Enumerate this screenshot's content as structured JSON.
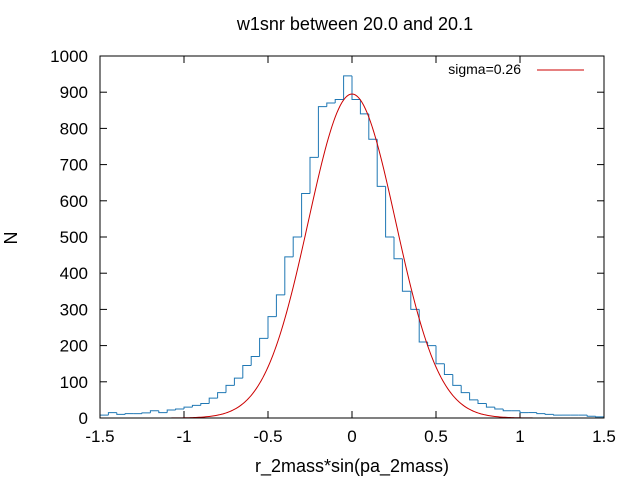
{
  "chart_data": {
    "type": "bar",
    "title": "w1snr between 20.0 and 20.1",
    "xlabel": "r_2mass*sin(pa_2mass)",
    "ylabel": "N",
    "xlim": [
      -1.5,
      1.5
    ],
    "ylim": [
      0,
      1000
    ],
    "xticks": [
      -1.5,
      -1,
      -0.5,
      0,
      0.5,
      1,
      1.5
    ],
    "xtick_labels": [
      "-1.5",
      "-1",
      "-0.5",
      "0",
      "0.5",
      "1",
      "1.5"
    ],
    "yticks": [
      0,
      100,
      200,
      300,
      400,
      500,
      600,
      700,
      800,
      900,
      1000
    ],
    "ytick_labels": [
      "0",
      "100",
      "200",
      "300",
      "400",
      "500",
      "600",
      "700",
      "800",
      "900",
      "1000"
    ],
    "grid": false,
    "legend_position": "top-right",
    "colors": {
      "histogram": "#1f77b4",
      "fit": "#cc0000"
    },
    "histogram": {
      "bin_width": 0.05,
      "bin_centers": [
        -1.475,
        -1.425,
        -1.375,
        -1.325,
        -1.275,
        -1.225,
        -1.175,
        -1.125,
        -1.075,
        -1.025,
        -0.975,
        -0.925,
        -0.875,
        -0.825,
        -0.775,
        -0.725,
        -0.675,
        -0.625,
        -0.575,
        -0.525,
        -0.475,
        -0.425,
        -0.375,
        -0.325,
        -0.275,
        -0.225,
        -0.175,
        -0.125,
        -0.075,
        -0.025,
        0.025,
        0.075,
        0.125,
        0.175,
        0.225,
        0.275,
        0.325,
        0.375,
        0.425,
        0.475,
        0.525,
        0.575,
        0.625,
        0.675,
        0.725,
        0.775,
        0.825,
        0.875,
        0.925,
        0.975,
        1.025,
        1.075,
        1.125,
        1.175,
        1.225,
        1.275,
        1.325,
        1.375,
        1.425,
        1.475
      ],
      "counts": [
        8,
        15,
        10,
        12,
        12,
        14,
        20,
        15,
        22,
        25,
        30,
        35,
        40,
        55,
        70,
        90,
        110,
        145,
        170,
        220,
        280,
        340,
        445,
        500,
        620,
        720,
        860,
        870,
        880,
        945,
        880,
        840,
        770,
        640,
        500,
        440,
        350,
        300,
        210,
        200,
        150,
        120,
        90,
        70,
        50,
        40,
        30,
        25,
        20,
        20,
        15,
        15,
        12,
        10,
        8,
        8,
        8,
        8,
        5,
        3
      ]
    },
    "fit": {
      "label": "sigma=0.26",
      "type": "gaussian",
      "mu": 0.0,
      "sigma": 0.26,
      "amplitude": 895
    }
  }
}
